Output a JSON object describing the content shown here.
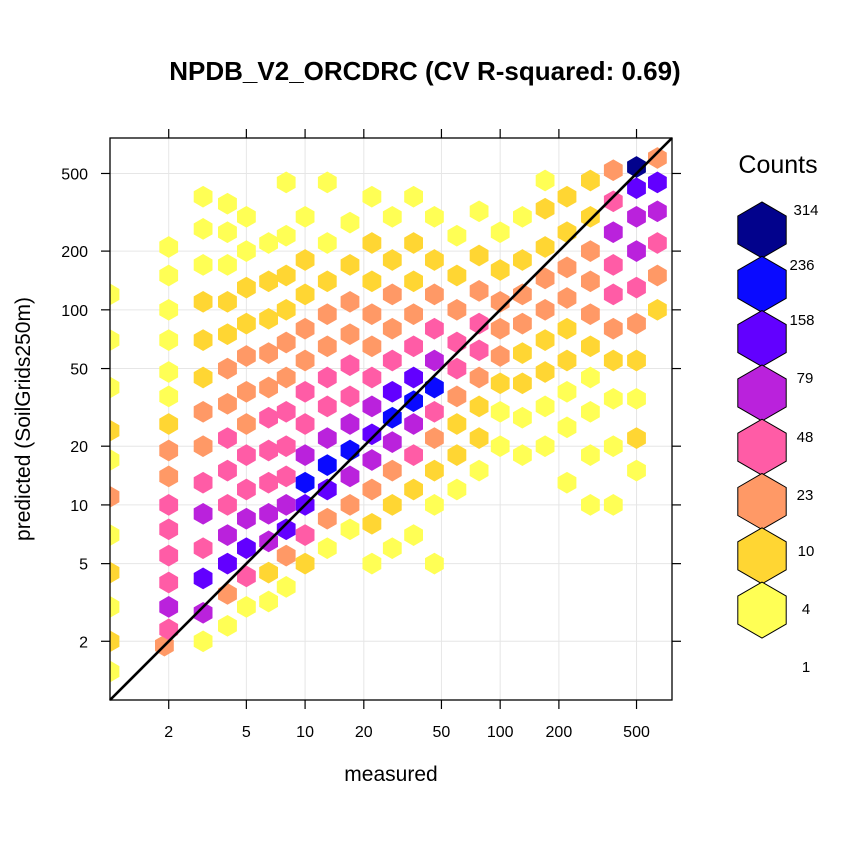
{
  "chart_data": {
    "type": "heatmap",
    "subtype": "hexbin",
    "title": "NPDB_V2_ORCDRC  (CV R-squared: 0.69)",
    "xlabel": "measured",
    "ylabel": "predicted (SoilGrids250m)",
    "x_scale": "log",
    "y_scale": "log",
    "xlim": [
      1,
      760
    ],
    "ylim": [
      1,
      760
    ],
    "x_ticks": [
      2,
      5,
      10,
      20,
      50,
      100,
      200,
      500
    ],
    "y_ticks": [
      2,
      5,
      10,
      20,
      50,
      100,
      200,
      500
    ],
    "grid": true,
    "reference_line": "1:1",
    "legend": {
      "title": "Counts",
      "placement": "right",
      "breaks": [
        "314",
        "236",
        "158",
        "79",
        "48",
        "23",
        "10",
        "4",
        "1"
      ],
      "colors": [
        "#FFFF55",
        "#FFD633",
        "#FF9966",
        "#FF5CA6",
        "#BA22DC",
        "#6200FF",
        "#0A0AFF",
        "#02028C"
      ]
    },
    "bins": [
      {
        "x": 1,
        "y": 1.4,
        "level": 0
      },
      {
        "x": 1,
        "y": 2,
        "level": 1
      },
      {
        "x": 1,
        "y": 3,
        "level": 0
      },
      {
        "x": 1,
        "y": 4.5,
        "level": 1
      },
      {
        "x": 1,
        "y": 7,
        "level": 0
      },
      {
        "x": 1,
        "y": 11,
        "level": 2
      },
      {
        "x": 1,
        "y": 17,
        "level": 0
      },
      {
        "x": 1,
        "y": 24,
        "level": 1
      },
      {
        "x": 1,
        "y": 40,
        "level": 0
      },
      {
        "x": 1,
        "y": 70,
        "level": 0
      },
      {
        "x": 1,
        "y": 120,
        "level": 0
      },
      {
        "x": 1.9,
        "y": 1.9,
        "level": 2
      },
      {
        "x": 2,
        "y": 2.3,
        "level": 3
      },
      {
        "x": 2,
        "y": 3,
        "level": 4
      },
      {
        "x": 2,
        "y": 4,
        "level": 3
      },
      {
        "x": 2,
        "y": 5.5,
        "level": 3
      },
      {
        "x": 2,
        "y": 7.5,
        "level": 3
      },
      {
        "x": 2,
        "y": 10,
        "level": 3
      },
      {
        "x": 2,
        "y": 14,
        "level": 2
      },
      {
        "x": 2,
        "y": 19,
        "level": 2
      },
      {
        "x": 2,
        "y": 26,
        "level": 1
      },
      {
        "x": 2,
        "y": 36,
        "level": 0
      },
      {
        "x": 2,
        "y": 48,
        "level": 0
      },
      {
        "x": 2,
        "y": 70,
        "level": 0
      },
      {
        "x": 2,
        "y": 100,
        "level": 0
      },
      {
        "x": 2,
        "y": 150,
        "level": 0
      },
      {
        "x": 2,
        "y": 210,
        "level": 0
      },
      {
        "x": 3,
        "y": 2,
        "level": 0
      },
      {
        "x": 3,
        "y": 2.8,
        "level": 4
      },
      {
        "x": 3,
        "y": 4.2,
        "level": 5
      },
      {
        "x": 3,
        "y": 6,
        "level": 3
      },
      {
        "x": 3,
        "y": 9,
        "level": 4
      },
      {
        "x": 3,
        "y": 13,
        "level": 3
      },
      {
        "x": 3,
        "y": 20,
        "level": 2
      },
      {
        "x": 3,
        "y": 30,
        "level": 2
      },
      {
        "x": 3,
        "y": 45,
        "level": 1
      },
      {
        "x": 3,
        "y": 70,
        "level": 1
      },
      {
        "x": 3,
        "y": 110,
        "level": 1
      },
      {
        "x": 3,
        "y": 170,
        "level": 0
      },
      {
        "x": 3,
        "y": 260,
        "level": 0
      },
      {
        "x": 3,
        "y": 380,
        "level": 0
      },
      {
        "x": 4,
        "y": 2.4,
        "level": 0
      },
      {
        "x": 4,
        "y": 3.5,
        "level": 2
      },
      {
        "x": 4,
        "y": 5,
        "level": 5
      },
      {
        "x": 4,
        "y": 7,
        "level": 4
      },
      {
        "x": 4,
        "y": 10,
        "level": 3
      },
      {
        "x": 4,
        "y": 15,
        "level": 3
      },
      {
        "x": 4,
        "y": 22,
        "level": 3
      },
      {
        "x": 4,
        "y": 33,
        "level": 2
      },
      {
        "x": 4,
        "y": 50,
        "level": 2
      },
      {
        "x": 4,
        "y": 75,
        "level": 1
      },
      {
        "x": 4,
        "y": 110,
        "level": 1
      },
      {
        "x": 4,
        "y": 170,
        "level": 0
      },
      {
        "x": 4,
        "y": 250,
        "level": 0
      },
      {
        "x": 4,
        "y": 350,
        "level": 0
      },
      {
        "x": 5,
        "y": 3,
        "level": 0
      },
      {
        "x": 5,
        "y": 4.3,
        "level": 3
      },
      {
        "x": 5,
        "y": 6,
        "level": 5
      },
      {
        "x": 5,
        "y": 8.5,
        "level": 4
      },
      {
        "x": 5,
        "y": 12,
        "level": 3
      },
      {
        "x": 5,
        "y": 18,
        "level": 3
      },
      {
        "x": 5,
        "y": 26,
        "level": 2
      },
      {
        "x": 5,
        "y": 38,
        "level": 2
      },
      {
        "x": 5,
        "y": 58,
        "level": 2
      },
      {
        "x": 5,
        "y": 85,
        "level": 1
      },
      {
        "x": 5,
        "y": 130,
        "level": 1
      },
      {
        "x": 5,
        "y": 200,
        "level": 0
      },
      {
        "x": 5,
        "y": 300,
        "level": 0
      },
      {
        "x": 6.5,
        "y": 3.2,
        "level": 0
      },
      {
        "x": 6.5,
        "y": 4.5,
        "level": 1
      },
      {
        "x": 6.5,
        "y": 6.5,
        "level": 4
      },
      {
        "x": 6.5,
        "y": 9,
        "level": 4
      },
      {
        "x": 6.5,
        "y": 13,
        "level": 3
      },
      {
        "x": 6.5,
        "y": 19,
        "level": 3
      },
      {
        "x": 6.5,
        "y": 28,
        "level": 3
      },
      {
        "x": 6.5,
        "y": 40,
        "level": 2
      },
      {
        "x": 6.5,
        "y": 60,
        "level": 2
      },
      {
        "x": 6.5,
        "y": 90,
        "level": 1
      },
      {
        "x": 6.5,
        "y": 140,
        "level": 1
      },
      {
        "x": 6.5,
        "y": 220,
        "level": 0
      },
      {
        "x": 8,
        "y": 3.8,
        "level": 0
      },
      {
        "x": 8,
        "y": 5.5,
        "level": 2
      },
      {
        "x": 8,
        "y": 7.5,
        "level": 5
      },
      {
        "x": 8,
        "y": 10,
        "level": 4
      },
      {
        "x": 8,
        "y": 14,
        "level": 3
      },
      {
        "x": 8,
        "y": 20,
        "level": 3
      },
      {
        "x": 8,
        "y": 30,
        "level": 3
      },
      {
        "x": 8,
        "y": 45,
        "level": 2
      },
      {
        "x": 8,
        "y": 68,
        "level": 2
      },
      {
        "x": 8,
        "y": 100,
        "level": 1
      },
      {
        "x": 8,
        "y": 150,
        "level": 1
      },
      {
        "x": 8,
        "y": 240,
        "level": 0
      },
      {
        "x": 8,
        "y": 450,
        "level": 0
      },
      {
        "x": 10,
        "y": 5,
        "level": 1
      },
      {
        "x": 10,
        "y": 7,
        "level": 3
      },
      {
        "x": 10,
        "y": 10,
        "level": 5
      },
      {
        "x": 10,
        "y": 13,
        "level": 6
      },
      {
        "x": 10,
        "y": 18,
        "level": 4
      },
      {
        "x": 10,
        "y": 26,
        "level": 3
      },
      {
        "x": 10,
        "y": 38,
        "level": 3
      },
      {
        "x": 10,
        "y": 55,
        "level": 2
      },
      {
        "x": 10,
        "y": 80,
        "level": 2
      },
      {
        "x": 10,
        "y": 120,
        "level": 1
      },
      {
        "x": 10,
        "y": 180,
        "level": 1
      },
      {
        "x": 10,
        "y": 300,
        "level": 0
      },
      {
        "x": 13,
        "y": 6,
        "level": 0
      },
      {
        "x": 13,
        "y": 8.5,
        "level": 2
      },
      {
        "x": 13,
        "y": 12,
        "level": 5
      },
      {
        "x": 13,
        "y": 16,
        "level": 6
      },
      {
        "x": 13,
        "y": 22,
        "level": 4
      },
      {
        "x": 13,
        "y": 32,
        "level": 3
      },
      {
        "x": 13,
        "y": 45,
        "level": 3
      },
      {
        "x": 13,
        "y": 65,
        "level": 2
      },
      {
        "x": 13,
        "y": 95,
        "level": 2
      },
      {
        "x": 13,
        "y": 140,
        "level": 1
      },
      {
        "x": 13,
        "y": 220,
        "level": 0
      },
      {
        "x": 13,
        "y": 450,
        "level": 0
      },
      {
        "x": 17,
        "y": 7.5,
        "level": 0
      },
      {
        "x": 17,
        "y": 10,
        "level": 2
      },
      {
        "x": 17,
        "y": 14,
        "level": 4
      },
      {
        "x": 17,
        "y": 19,
        "level": 6
      },
      {
        "x": 17,
        "y": 26,
        "level": 4
      },
      {
        "x": 17,
        "y": 36,
        "level": 3
      },
      {
        "x": 17,
        "y": 52,
        "level": 3
      },
      {
        "x": 17,
        "y": 75,
        "level": 2
      },
      {
        "x": 17,
        "y": 110,
        "level": 2
      },
      {
        "x": 17,
        "y": 170,
        "level": 1
      },
      {
        "x": 17,
        "y": 280,
        "level": 0
      },
      {
        "x": 22,
        "y": 5,
        "level": 0
      },
      {
        "x": 22,
        "y": 8,
        "level": 1
      },
      {
        "x": 22,
        "y": 12,
        "level": 2
      },
      {
        "x": 22,
        "y": 17,
        "level": 4
      },
      {
        "x": 22,
        "y": 23,
        "level": 5
      },
      {
        "x": 22,
        "y": 32,
        "level": 4
      },
      {
        "x": 22,
        "y": 45,
        "level": 3
      },
      {
        "x": 22,
        "y": 65,
        "level": 2
      },
      {
        "x": 22,
        "y": 95,
        "level": 2
      },
      {
        "x": 22,
        "y": 140,
        "level": 1
      },
      {
        "x": 22,
        "y": 220,
        "level": 1
      },
      {
        "x": 22,
        "y": 380,
        "level": 0
      },
      {
        "x": 28,
        "y": 6,
        "level": 0
      },
      {
        "x": 28,
        "y": 10,
        "level": 1
      },
      {
        "x": 28,
        "y": 15,
        "level": 2
      },
      {
        "x": 28,
        "y": 21,
        "level": 4
      },
      {
        "x": 28,
        "y": 28,
        "level": 6
      },
      {
        "x": 28,
        "y": 38,
        "level": 5
      },
      {
        "x": 28,
        "y": 55,
        "level": 3
      },
      {
        "x": 28,
        "y": 80,
        "level": 2
      },
      {
        "x": 28,
        "y": 120,
        "level": 2
      },
      {
        "x": 28,
        "y": 180,
        "level": 1
      },
      {
        "x": 28,
        "y": 300,
        "level": 0
      },
      {
        "x": 36,
        "y": 7,
        "level": 0
      },
      {
        "x": 36,
        "y": 12,
        "level": 1
      },
      {
        "x": 36,
        "y": 18,
        "level": 3
      },
      {
        "x": 36,
        "y": 26,
        "level": 4
      },
      {
        "x": 36,
        "y": 34,
        "level": 6
      },
      {
        "x": 36,
        "y": 45,
        "level": 5
      },
      {
        "x": 36,
        "y": 65,
        "level": 3
      },
      {
        "x": 36,
        "y": 95,
        "level": 2
      },
      {
        "x": 36,
        "y": 140,
        "level": 1
      },
      {
        "x": 36,
        "y": 220,
        "level": 1
      },
      {
        "x": 36,
        "y": 380,
        "level": 0
      },
      {
        "x": 46,
        "y": 5,
        "level": 0
      },
      {
        "x": 46,
        "y": 10,
        "level": 0
      },
      {
        "x": 46,
        "y": 15,
        "level": 1
      },
      {
        "x": 46,
        "y": 22,
        "level": 2
      },
      {
        "x": 46,
        "y": 30,
        "level": 3
      },
      {
        "x": 46,
        "y": 40,
        "level": 6
      },
      {
        "x": 46,
        "y": 55,
        "level": 4
      },
      {
        "x": 46,
        "y": 80,
        "level": 3
      },
      {
        "x": 46,
        "y": 120,
        "level": 2
      },
      {
        "x": 46,
        "y": 180,
        "level": 1
      },
      {
        "x": 46,
        "y": 300,
        "level": 0
      },
      {
        "x": 60,
        "y": 12,
        "level": 0
      },
      {
        "x": 60,
        "y": 18,
        "level": 1
      },
      {
        "x": 60,
        "y": 26,
        "level": 1
      },
      {
        "x": 60,
        "y": 36,
        "level": 2
      },
      {
        "x": 60,
        "y": 50,
        "level": 3
      },
      {
        "x": 60,
        "y": 68,
        "level": 3
      },
      {
        "x": 60,
        "y": 100,
        "level": 2
      },
      {
        "x": 60,
        "y": 150,
        "level": 1
      },
      {
        "x": 60,
        "y": 240,
        "level": 0
      },
      {
        "x": 78,
        "y": 15,
        "level": 0
      },
      {
        "x": 78,
        "y": 22,
        "level": 1
      },
      {
        "x": 78,
        "y": 32,
        "level": 1
      },
      {
        "x": 78,
        "y": 45,
        "level": 2
      },
      {
        "x": 78,
        "y": 62,
        "level": 3
      },
      {
        "x": 78,
        "y": 85,
        "level": 3
      },
      {
        "x": 78,
        "y": 125,
        "level": 2
      },
      {
        "x": 78,
        "y": 190,
        "level": 1
      },
      {
        "x": 78,
        "y": 320,
        "level": 0
      },
      {
        "x": 100,
        "y": 20,
        "level": 0
      },
      {
        "x": 100,
        "y": 30,
        "level": 0
      },
      {
        "x": 100,
        "y": 42,
        "level": 1
      },
      {
        "x": 100,
        "y": 58,
        "level": 2
      },
      {
        "x": 100,
        "y": 80,
        "level": 2
      },
      {
        "x": 100,
        "y": 110,
        "level": 2
      },
      {
        "x": 100,
        "y": 160,
        "level": 1
      },
      {
        "x": 100,
        "y": 250,
        "level": 0
      },
      {
        "x": 130,
        "y": 18,
        "level": 0
      },
      {
        "x": 130,
        "y": 28,
        "level": 0
      },
      {
        "x": 130,
        "y": 42,
        "level": 1
      },
      {
        "x": 130,
        "y": 60,
        "level": 1
      },
      {
        "x": 130,
        "y": 85,
        "level": 2
      },
      {
        "x": 130,
        "y": 120,
        "level": 2
      },
      {
        "x": 130,
        "y": 180,
        "level": 1
      },
      {
        "x": 130,
        "y": 300,
        "level": 0
      },
      {
        "x": 170,
        "y": 20,
        "level": 0
      },
      {
        "x": 170,
        "y": 32,
        "level": 0
      },
      {
        "x": 170,
        "y": 48,
        "level": 1
      },
      {
        "x": 170,
        "y": 70,
        "level": 1
      },
      {
        "x": 170,
        "y": 100,
        "level": 2
      },
      {
        "x": 170,
        "y": 145,
        "level": 2
      },
      {
        "x": 170,
        "y": 210,
        "level": 1
      },
      {
        "x": 170,
        "y": 330,
        "level": 1
      },
      {
        "x": 170,
        "y": 460,
        "level": 0
      },
      {
        "x": 220,
        "y": 13,
        "level": 0
      },
      {
        "x": 220,
        "y": 25,
        "level": 0
      },
      {
        "x": 220,
        "y": 38,
        "level": 0
      },
      {
        "x": 220,
        "y": 55,
        "level": 1
      },
      {
        "x": 220,
        "y": 80,
        "level": 1
      },
      {
        "x": 220,
        "y": 115,
        "level": 2
      },
      {
        "x": 220,
        "y": 165,
        "level": 2
      },
      {
        "x": 220,
        "y": 250,
        "level": 1
      },
      {
        "x": 220,
        "y": 380,
        "level": 1
      },
      {
        "x": 290,
        "y": 10,
        "level": 0
      },
      {
        "x": 290,
        "y": 18,
        "level": 0
      },
      {
        "x": 290,
        "y": 30,
        "level": 0
      },
      {
        "x": 290,
        "y": 45,
        "level": 0
      },
      {
        "x": 290,
        "y": 65,
        "level": 1
      },
      {
        "x": 290,
        "y": 95,
        "level": 2
      },
      {
        "x": 290,
        "y": 140,
        "level": 2
      },
      {
        "x": 290,
        "y": 200,
        "level": 2
      },
      {
        "x": 290,
        "y": 300,
        "level": 1
      },
      {
        "x": 290,
        "y": 460,
        "level": 1
      },
      {
        "x": 380,
        "y": 10,
        "level": 0
      },
      {
        "x": 380,
        "y": 20,
        "level": 0
      },
      {
        "x": 380,
        "y": 35,
        "level": 0
      },
      {
        "x": 380,
        "y": 55,
        "level": 1
      },
      {
        "x": 380,
        "y": 80,
        "level": 2
      },
      {
        "x": 380,
        "y": 120,
        "level": 3
      },
      {
        "x": 380,
        "y": 170,
        "level": 3
      },
      {
        "x": 380,
        "y": 250,
        "level": 4
      },
      {
        "x": 380,
        "y": 360,
        "level": 3
      },
      {
        "x": 380,
        "y": 520,
        "level": 2
      },
      {
        "x": 500,
        "y": 15,
        "level": 0
      },
      {
        "x": 500,
        "y": 22,
        "level": 1
      },
      {
        "x": 500,
        "y": 35,
        "level": 0
      },
      {
        "x": 500,
        "y": 55,
        "level": 1
      },
      {
        "x": 500,
        "y": 85,
        "level": 2
      },
      {
        "x": 500,
        "y": 130,
        "level": 3
      },
      {
        "x": 500,
        "y": 200,
        "level": 4
      },
      {
        "x": 500,
        "y": 300,
        "level": 4
      },
      {
        "x": 500,
        "y": 420,
        "level": 5
      },
      {
        "x": 500,
        "y": 540,
        "level": 7
      },
      {
        "x": 640,
        "y": 100,
        "level": 1
      },
      {
        "x": 640,
        "y": 150,
        "level": 2
      },
      {
        "x": 640,
        "y": 220,
        "level": 3
      },
      {
        "x": 640,
        "y": 320,
        "level": 4
      },
      {
        "x": 640,
        "y": 450,
        "level": 5
      },
      {
        "x": 640,
        "y": 600,
        "level": 2
      }
    ]
  }
}
